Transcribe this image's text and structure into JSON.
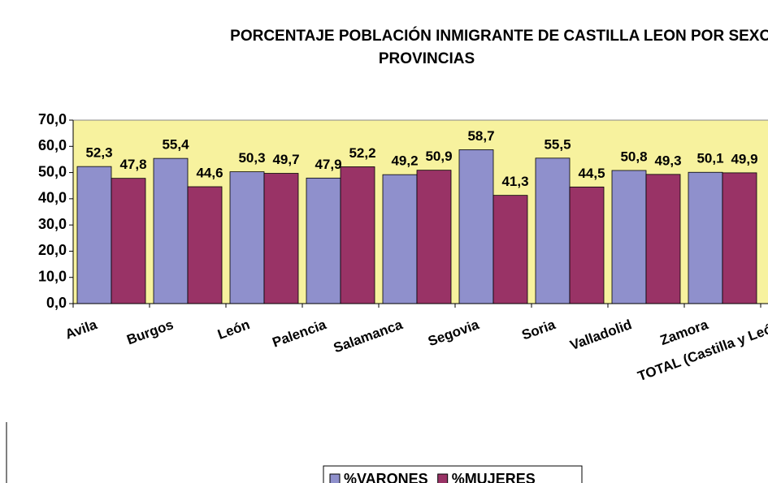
{
  "chart_data": {
    "type": "bar",
    "title": [
      "PORCENTAJE POBLACIÓN INMIGRANTE DE CASTILLA LEON POR SEXO Y",
      "PROVINCIAS"
    ],
    "categories": [
      "Avila",
      "Burgos",
      "León",
      "Palencia",
      "Salamanca",
      "Segovia",
      "Soria",
      "Valladolid",
      "Zamora",
      "TOTAL (Castilla y León)"
    ],
    "series": [
      {
        "name": "%VARONES",
        "color": "#8f90cc",
        "values": [
          52.3,
          55.4,
          50.3,
          47.9,
          49.2,
          58.7,
          55.5,
          50.8,
          50.1,
          null
        ],
        "value_labels": [
          "52,3",
          "55,4",
          "50,3",
          "47,9",
          "49,2",
          "58,7",
          "55,5",
          "50,8",
          "50,1",
          null
        ]
      },
      {
        "name": "%MUJERES",
        "color": "#993366",
        "values": [
          47.8,
          44.6,
          49.7,
          52.2,
          50.9,
          41.3,
          44.5,
          49.3,
          49.9,
          null
        ],
        "value_labels": [
          "47,8",
          "44,6",
          "49,7",
          "52,2",
          "50,9",
          "41,3",
          "44,5",
          "49,3",
          "49,9",
          null
        ]
      }
    ],
    "ylim": [
      0,
      70
    ],
    "yticks": [
      {
        "value": 0,
        "label": "0,0"
      },
      {
        "value": 10,
        "label": "10,0"
      },
      {
        "value": 20,
        "label": "20,0"
      },
      {
        "value": 30,
        "label": "30,0"
      },
      {
        "value": 40,
        "label": "40,0"
      },
      {
        "value": 50,
        "label": "50,0"
      },
      {
        "value": 60,
        "label": "60,0"
      },
      {
        "value": 70,
        "label": "70,0"
      }
    ],
    "grid": false,
    "legend": "bottom",
    "plot_background": "#f7f29e"
  }
}
